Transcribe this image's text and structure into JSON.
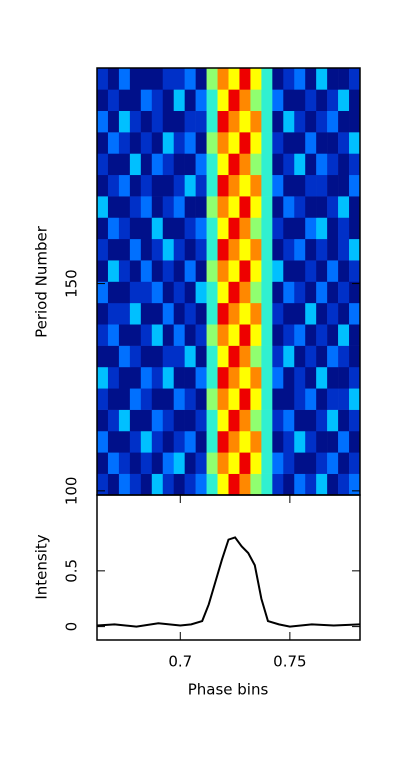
{
  "chart_data": [
    {
      "type": "heatmap",
      "ylabel": "Period Number",
      "xlim": [
        0.662,
        0.782
      ],
      "ylim": [
        99,
        202
      ],
      "yticks": [
        100,
        150
      ],
      "colorscale": [
        "#000060",
        "#00108a",
        "#0030c8",
        "#0070ff",
        "#00c0ff",
        "#30f0d0",
        "#90ff70",
        "#ffff00",
        "#ff8800",
        "#ee0000"
      ],
      "z": [
        [
          2,
          1,
          3,
          2,
          1,
          4,
          2,
          1,
          2,
          3,
          5,
          7,
          9,
          8,
          6,
          5,
          2,
          1,
          3,
          2,
          4,
          1,
          2,
          3
        ],
        [
          1,
          3,
          2,
          1,
          2,
          1,
          3,
          4,
          1,
          2,
          6,
          8,
          7,
          9,
          7,
          5,
          3,
          2,
          1,
          1,
          2,
          3,
          1,
          2
        ],
        [
          3,
          1,
          1,
          2,
          4,
          2,
          1,
          2,
          3,
          1,
          5,
          9,
          8,
          7,
          8,
          5,
          1,
          2,
          4,
          2,
          1,
          1,
          3,
          1
        ],
        [
          1,
          2,
          4,
          1,
          1,
          3,
          2,
          1,
          1,
          2,
          5,
          7,
          9,
          8,
          6,
          5,
          2,
          3,
          1,
          1,
          2,
          4,
          1,
          2
        ],
        [
          2,
          1,
          1,
          3,
          2,
          1,
          1,
          3,
          2,
          1,
          6,
          8,
          7,
          9,
          7,
          5,
          1,
          1,
          2,
          3,
          1,
          2,
          2,
          4
        ],
        [
          4,
          2,
          1,
          1,
          3,
          2,
          4,
          1,
          1,
          3,
          5,
          9,
          8,
          7,
          8,
          5,
          3,
          1,
          2,
          1,
          4,
          1,
          1,
          2
        ],
        [
          1,
          1,
          3,
          2,
          1,
          1,
          2,
          2,
          4,
          1,
          5,
          7,
          9,
          8,
          6,
          5,
          2,
          4,
          1,
          2,
          1,
          3,
          2,
          1
        ],
        [
          2,
          3,
          1,
          1,
          2,
          4,
          1,
          3,
          1,
          2,
          6,
          8,
          7,
          9,
          7,
          5,
          1,
          2,
          3,
          1,
          2,
          1,
          4,
          1
        ],
        [
          1,
          2,
          2,
          4,
          1,
          1,
          3,
          1,
          2,
          1,
          5,
          9,
          8,
          7,
          8,
          5,
          2,
          1,
          1,
          4,
          1,
          2,
          1,
          3
        ],
        [
          3,
          1,
          1,
          2,
          2,
          3,
          1,
          2,
          1,
          4,
          5,
          7,
          9,
          8,
          6,
          5,
          1,
          3,
          2,
          1,
          3,
          1,
          2,
          1
        ],
        [
          1,
          4,
          2,
          1,
          3,
          1,
          2,
          1,
          3,
          1,
          6,
          8,
          7,
          9,
          7,
          5,
          4,
          1,
          1,
          2,
          1,
          3,
          1,
          2
        ],
        [
          2,
          1,
          1,
          3,
          1,
          2,
          4,
          2,
          1,
          2,
          5,
          9,
          8,
          7,
          8,
          5,
          1,
          2,
          3,
          1,
          2,
          1,
          2,
          4
        ],
        [
          1,
          3,
          2,
          1,
          1,
          4,
          1,
          1,
          2,
          3,
          5,
          7,
          9,
          8,
          6,
          5,
          2,
          1,
          1,
          3,
          4,
          1,
          2,
          1
        ],
        [
          4,
          1,
          1,
          2,
          3,
          1,
          2,
          3,
          1,
          1,
          6,
          8,
          7,
          9,
          7,
          5,
          1,
          3,
          2,
          1,
          1,
          2,
          4,
          1
        ],
        [
          1,
          2,
          3,
          1,
          2,
          1,
          1,
          2,
          4,
          2,
          5,
          9,
          8,
          7,
          8,
          5,
          3,
          1,
          1,
          2,
          2,
          1,
          1,
          3
        ],
        [
          2,
          1,
          1,
          4,
          1,
          3,
          2,
          1,
          1,
          3,
          5,
          7,
          9,
          8,
          6,
          5,
          1,
          2,
          4,
          1,
          3,
          2,
          1,
          2
        ],
        [
          1,
          3,
          2,
          1,
          2,
          1,
          4,
          2,
          3,
          1,
          6,
          8,
          7,
          9,
          7,
          5,
          2,
          1,
          1,
          3,
          1,
          1,
          2,
          4
        ],
        [
          3,
          1,
          4,
          2,
          1,
          2,
          1,
          1,
          2,
          2,
          5,
          9,
          8,
          7,
          8,
          5,
          1,
          4,
          2,
          1,
          2,
          3,
          1,
          1
        ],
        [
          1,
          2,
          1,
          1,
          3,
          2,
          1,
          4,
          1,
          3,
          5,
          7,
          9,
          8,
          6,
          5,
          3,
          1,
          1,
          2,
          1,
          2,
          4,
          1
        ],
        [
          2,
          1,
          3,
          1,
          1,
          1,
          2,
          2,
          3,
          1,
          6,
          8,
          7,
          9,
          7,
          5,
          1,
          2,
          3,
          1,
          4,
          1,
          1,
          2
        ]
      ]
    },
    {
      "type": "line",
      "ylabel": "Intensity",
      "xlabel": "Phase bins",
      "color": "#000000",
      "xlim": [
        0.662,
        0.782
      ],
      "ylim": [
        -0.12,
        1.18
      ],
      "xticks": [
        0.7,
        0.75
      ],
      "yticks": [
        0,
        0.5
      ],
      "x": [
        0.662,
        0.67,
        0.68,
        0.69,
        0.7,
        0.705,
        0.71,
        0.713,
        0.716,
        0.719,
        0.722,
        0.725,
        0.728,
        0.731,
        0.734,
        0.737,
        0.74,
        0.745,
        0.75,
        0.76,
        0.77,
        0.782
      ],
      "values": [
        0.01,
        0.02,
        0,
        0.03,
        0.01,
        0.02,
        0.05,
        0.2,
        0.4,
        0.6,
        0.78,
        0.8,
        0.72,
        0.66,
        0.55,
        0.25,
        0.05,
        0.02,
        0,
        0.02,
        0.01,
        0.02
      ]
    }
  ]
}
